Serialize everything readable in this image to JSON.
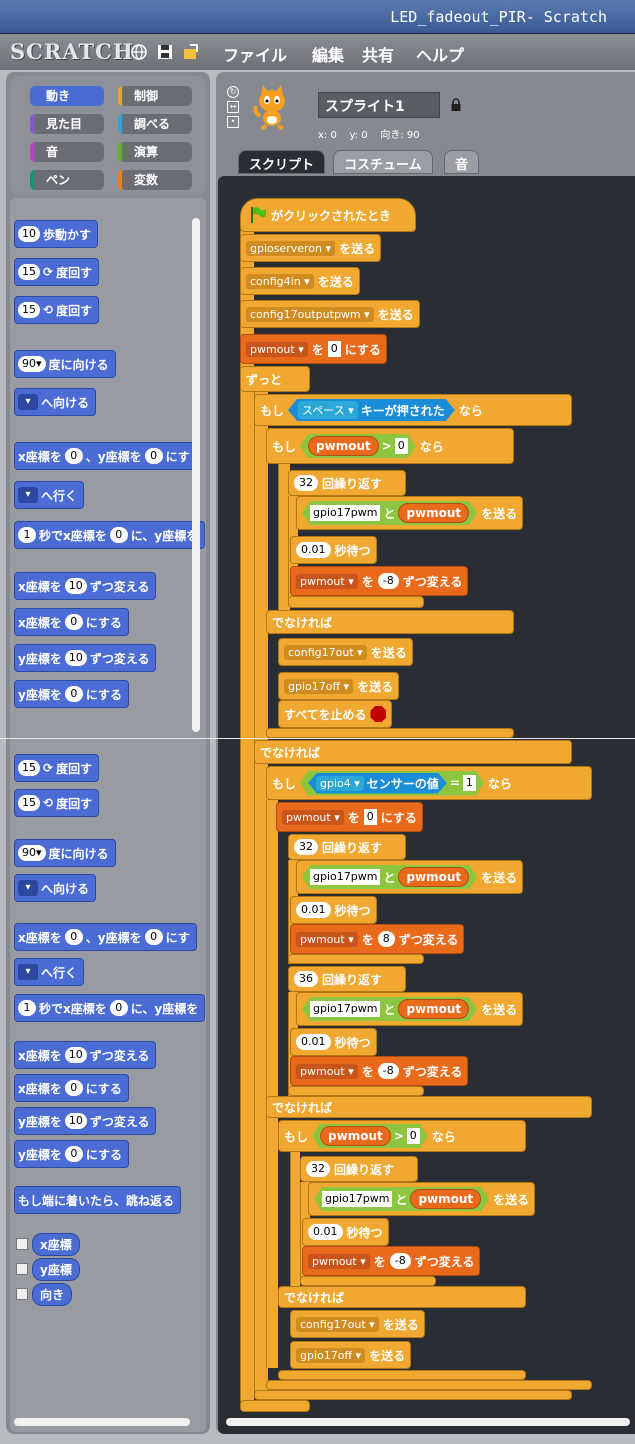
{
  "window": {
    "title": "LED_fadeout_PIR- Scratch"
  },
  "menu": {
    "logo": "SCRATCH",
    "items": [
      "ファイル",
      "編集",
      "共有",
      "ヘルプ"
    ]
  },
  "categories": [
    {
      "label": "動き",
      "color": "#4a6cd4",
      "selected": true
    },
    {
      "label": "制御",
      "color": "#e6a822"
    },
    {
      "label": "見た目",
      "color": "#8a55d7"
    },
    {
      "label": "調べる",
      "color": "#2ca5e2"
    },
    {
      "label": "音",
      "color": "#bb42c3"
    },
    {
      "label": "演算",
      "color": "#5cb712"
    },
    {
      "label": "ペン",
      "color": "#0e9a6c"
    },
    {
      "label": "変数",
      "color": "#ee7d16"
    }
  ],
  "sprite": {
    "name": "スプライト1",
    "x_label": "x: 0",
    "y_label": "y: 0",
    "dir_label": "向き: 90"
  },
  "tabs": [
    "スクリプト",
    "コスチューム",
    "音"
  ],
  "palette_top": {
    "move": {
      "num": "10",
      "label": "歩動かす"
    },
    "turn_cw": {
      "num": "15",
      "label": "度回す"
    },
    "turn_ccw": {
      "num": "15",
      "label": "度回す"
    },
    "point_dir": {
      "num": "90",
      "label": "度に向ける"
    },
    "point_to": {
      "label": "へ向ける"
    },
    "goto_xy": {
      "a": "x座標を",
      "x": "0",
      "b": "、y座標を",
      "y": "0",
      "c": "にす"
    },
    "goto": {
      "label": "へ行く"
    },
    "glide": {
      "sec": "1",
      "a": "秒でx座標を",
      "x": "0",
      "b": "に、y座標を"
    },
    "change_x": {
      "a": "x座標を",
      "n": "10",
      "b": "ずつ変える"
    },
    "set_x": {
      "a": "x座標を",
      "n": "0",
      "b": "にする"
    },
    "change_y": {
      "a": "y座標を",
      "n": "10",
      "b": "ずつ変える"
    },
    "set_y": {
      "a": "y座標を",
      "n": "0",
      "b": "にする"
    }
  },
  "palette_bottom": {
    "bounce": "もし端に着いたら、跳ね返る",
    "reporters": [
      "x座標",
      "y座標",
      "向き"
    ]
  },
  "script": {
    "hat": "がクリックされたとき",
    "send": "を送る",
    "b1": "gpioserveron",
    "b2": "config4in",
    "b3": "config17outputpwm",
    "setvar": {
      "var": "pwmout",
      "a": "を",
      "n": "0",
      "b": "にする"
    },
    "forever": "ずっと",
    "if": "もし",
    "then": "なら",
    "else": "でなければ",
    "key": {
      "key": "スペース",
      "label": "キーが押された"
    },
    "cond_gt": {
      "var": "pwmout",
      "op": ">",
      "n": "0"
    },
    "repeat_label": "回繰り返す",
    "repeat32": "32",
    "repeat36": "36",
    "join": {
      "a": "gpio17pwm",
      "b": "と",
      "var": "pwmout"
    },
    "wait": {
      "n": "0.01",
      "label": "秒待つ"
    },
    "changevar": {
      "var": "pwmout",
      "a": "を",
      "neg": "-8",
      "pos": "8",
      "b": "ずつ変える"
    },
    "b_out": "config17out",
    "b_off": "gpio17off",
    "stopall": "すべてを止める",
    "sensor": {
      "name": "gpio4",
      "label": "センサーの値",
      "op": "=",
      "n": "1"
    }
  }
}
